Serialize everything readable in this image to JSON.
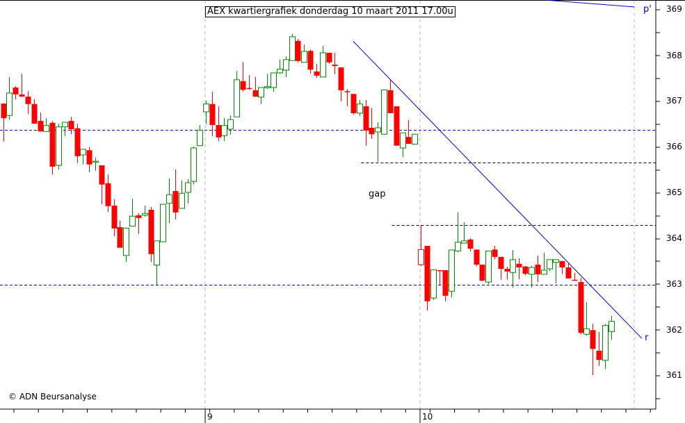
{
  "title": "AEX kwartiergrafiek donderdag 10 maart 2011 17.00u",
  "copyright": "© ADN Beursanalyse",
  "colors": {
    "up": "#008800",
    "down": "#ff0000",
    "trend": "#0000cc",
    "grid": "#bbbbbb",
    "support": "#0000cc",
    "gapline": "#000000"
  },
  "annotations": {
    "gap": "gap",
    "p_prime": "p'",
    "r": "r"
  },
  "y_axis": {
    "labels": [
      "369",
      "368",
      "367",
      "366",
      "365",
      "364",
      "363",
      "362",
      "361"
    ]
  },
  "x_axis": {
    "labels": [
      "9",
      "10"
    ]
  },
  "chart_data": {
    "type": "candlestick",
    "title": "AEX kwartiergrafiek donderdag 10 maart 2011 17.00u",
    "xlabel": "",
    "ylabel": "",
    "ylim": [
      360.3,
      369.2
    ],
    "x_ticks": [
      {
        "label": "9",
        "index": 33
      },
      {
        "label": "10",
        "index": 68
      }
    ],
    "y_ticks": [
      361,
      362,
      363,
      364,
      365,
      366,
      367,
      368,
      369
    ],
    "horizontal_lines": [
      {
        "price": 366.37,
        "style": "dashed",
        "color": "blue",
        "from": "start"
      },
      {
        "price": 362.99,
        "style": "dashed",
        "color": "blue",
        "from": "start"
      },
      {
        "price": 365.66,
        "style": "dashed",
        "color": "black",
        "from_index": 60
      },
      {
        "price": 364.3,
        "style": "dashed",
        "color": "black",
        "from_index": 65
      }
    ],
    "trend_lines": [
      {
        "label": "r",
        "from": {
          "index": 57,
          "price": 368.31
        },
        "to": {
          "index": 104,
          "price": 361.82
        }
      },
      {
        "label": "p'",
        "from": {
          "index": 88.4,
          "price": 369.21
        },
        "to": {
          "index": 102.8,
          "price": 369.06
        }
      }
    ],
    "candles": [
      [
        366.95,
        366.95,
        366.12,
        366.63
      ],
      [
        366.69,
        367.53,
        366.6,
        367.18
      ],
      [
        367.3,
        367.33,
        367.04,
        367.15
      ],
      [
        367.15,
        367.6,
        367.1,
        367.1
      ],
      [
        367.1,
        367.22,
        366.72,
        366.94
      ],
      [
        366.94,
        367.04,
        366.51,
        366.51
      ],
      [
        366.57,
        366.75,
        366.34,
        366.34
      ],
      [
        366.34,
        366.63,
        366.34,
        366.47
      ],
      [
        366.53,
        366.57,
        365.4,
        365.57
      ],
      [
        365.6,
        366.51,
        365.51,
        366.44
      ],
      [
        366.44,
        366.54,
        366.24,
        366.54
      ],
      [
        366.57,
        366.66,
        366.28,
        366.39
      ],
      [
        366.41,
        366.51,
        365.65,
        365.8
      ],
      [
        365.83,
        365.95,
        365.62,
        365.95
      ],
      [
        365.93,
        366.0,
        365.45,
        365.62
      ],
      [
        365.68,
        365.77,
        365.48,
        365.69
      ],
      [
        365.6,
        365.6,
        364.75,
        365.18
      ],
      [
        365.21,
        365.4,
        364.58,
        364.71
      ],
      [
        364.72,
        364.86,
        364.05,
        364.22
      ],
      [
        364.25,
        364.39,
        363.8,
        363.8
      ],
      [
        363.63,
        364.23,
        363.49,
        364.23
      ],
      [
        364.27,
        364.87,
        364.27,
        364.49
      ],
      [
        364.51,
        364.55,
        364.1,
        364.45
      ],
      [
        364.51,
        364.72,
        364.48,
        364.55
      ],
      [
        364.63,
        364.69,
        363.49,
        363.66
      ],
      [
        363.42,
        363.95,
        362.99,
        363.95
      ],
      [
        363.93,
        364.75,
        363.93,
        364.75
      ],
      [
        364.77,
        365.31,
        364.34,
        364.96
      ],
      [
        365.04,
        365.51,
        364.42,
        364.57
      ],
      [
        364.66,
        365.27,
        364.66,
        364.99
      ],
      [
        365.01,
        365.3,
        364.77,
        365.22
      ],
      [
        365.25,
        366.01,
        365.18,
        365.98
      ],
      [
        366.03,
        366.48,
        366.03,
        366.37
      ],
      [
        366.77,
        367.01,
        366.5,
        366.94
      ],
      [
        366.94,
        367.21,
        366.24,
        366.48
      ],
      [
        366.48,
        366.89,
        366.13,
        366.21
      ],
      [
        366.25,
        366.63,
        366.13,
        366.47
      ],
      [
        366.39,
        366.69,
        366.27,
        366.6
      ],
      [
        366.66,
        367.66,
        366.66,
        367.47
      ],
      [
        367.44,
        367.86,
        367.21,
        367.25
      ],
      [
        367.29,
        367.57,
        367.25,
        367.27
      ],
      [
        367.24,
        367.53,
        367.1,
        367.1
      ],
      [
        367.09,
        367.3,
        366.94,
        367.3
      ],
      [
        367.3,
        367.6,
        367.27,
        367.32
      ],
      [
        367.3,
        367.62,
        367.21,
        367.62
      ],
      [
        367.62,
        367.91,
        367.6,
        367.7
      ],
      [
        367.68,
        367.98,
        367.53,
        367.91
      ],
      [
        367.89,
        368.47,
        367.89,
        368.41
      ],
      [
        368.32,
        368.36,
        367.85,
        367.88
      ],
      [
        367.85,
        368.24,
        367.85,
        368.09
      ],
      [
        368.1,
        368.13,
        367.6,
        367.69
      ],
      [
        367.65,
        367.82,
        367.51,
        367.56
      ],
      [
        367.53,
        368.21,
        367.53,
        368.06
      ],
      [
        368.06,
        368.06,
        367.82,
        367.85
      ],
      [
        367.8,
        368.06,
        367.59,
        367.77
      ],
      [
        367.74,
        367.74,
        367.0,
        367.24
      ],
      [
        367.22,
        367.27,
        366.89,
        367.21
      ],
      [
        367.16,
        367.16,
        366.71,
        366.74
      ],
      [
        366.74,
        367.03,
        366.68,
        366.94
      ],
      [
        366.89,
        367.03,
        366.03,
        366.36
      ],
      [
        366.42,
        366.85,
        366.18,
        366.28
      ],
      [
        366.33,
        366.54,
        365.68,
        366.42
      ],
      [
        366.28,
        367.25,
        366.27,
        367.25
      ],
      [
        367.24,
        367.48,
        366.74,
        366.74
      ],
      [
        366.89,
        366.89,
        366.03,
        366.03
      ],
      [
        365.98,
        366.31,
        365.78,
        366.31
      ],
      [
        366.22,
        366.59,
        366.07,
        366.07
      ],
      [
        366.06,
        366.28,
        366.06,
        366.28
      ],
      [
        363.76,
        364.3,
        363.4,
        363.43
      ],
      [
        363.84,
        363.84,
        362.43,
        362.63
      ],
      [
        362.7,
        363.32,
        362.66,
        363.32
      ],
      [
        363.31,
        363.31,
        362.99,
        363.29
      ],
      [
        363.31,
        363.31,
        362.63,
        362.75
      ],
      [
        362.85,
        363.75,
        362.72,
        363.75
      ],
      [
        363.73,
        364.57,
        363.7,
        363.92
      ],
      [
        363.9,
        364.36,
        363.9,
        363.95
      ],
      [
        363.98,
        364.01,
        363.72,
        363.78
      ],
      [
        363.76,
        363.76,
        363.39,
        363.43
      ],
      [
        363.43,
        363.43,
        363.07,
        363.08
      ],
      [
        363.05,
        363.73,
        363.01,
        363.73
      ],
      [
        363.76,
        363.84,
        363.55,
        363.6
      ],
      [
        363.6,
        363.6,
        363.1,
        363.34
      ],
      [
        363.34,
        363.39,
        363.1,
        363.28
      ],
      [
        363.26,
        363.75,
        362.93,
        363.54
      ],
      [
        363.45,
        363.57,
        363.11,
        363.37
      ],
      [
        363.39,
        363.4,
        363.2,
        363.23
      ],
      [
        363.22,
        363.4,
        362.93,
        363.37
      ],
      [
        363.43,
        363.63,
        363.05,
        363.22
      ],
      [
        363.22,
        363.69,
        363.22,
        363.31
      ],
      [
        363.34,
        363.54,
        363.29,
        363.54
      ],
      [
        363.48,
        363.54,
        363.02,
        363.54
      ],
      [
        363.51,
        363.51,
        363.22,
        363.37
      ],
      [
        363.37,
        363.48,
        363.13,
        363.13
      ],
      [
        363.1,
        363.25,
        363.08,
        363.08
      ],
      [
        363.05,
        363.14,
        361.91,
        361.94
      ],
      [
        361.91,
        362.61,
        361.88,
        362.03
      ],
      [
        362.0,
        362.14,
        361.02,
        361.59
      ],
      [
        361.55,
        361.96,
        361.22,
        361.35
      ],
      [
        361.34,
        362.13,
        361.15,
        362.1
      ],
      [
        361.97,
        362.31,
        361.79,
        362.19
      ]
    ],
    "candle_format": [
      "open",
      "high",
      "low",
      "close"
    ],
    "hollow_down_indices": [
      68
    ]
  }
}
